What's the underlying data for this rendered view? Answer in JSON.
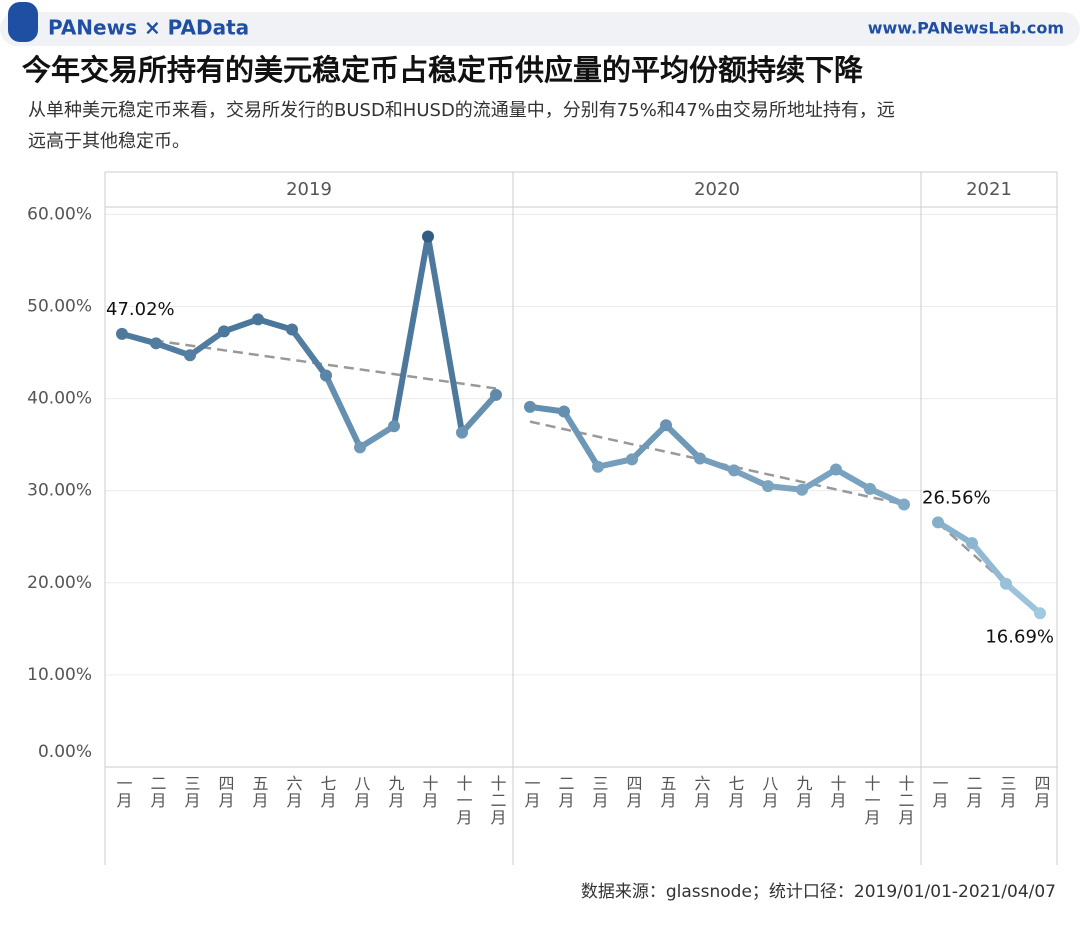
{
  "header": {
    "logo": "PANews × PAData",
    "url": "www.PANewsLab.com"
  },
  "chart_data": {
    "type": "line",
    "title": "今年交易所持有的美元稳定币占稳定币供应量的平均份额持续下降",
    "subtitle": [
      "从单种美元稳定币来看，交易所发行的BUSD和HUSD的流通量中，分别有75%和47%由交易所地址持有，远",
      "远高于其他稳定币。"
    ],
    "source": "数据来源：glassnode；统计口径：2019/01/01-2021/04/07",
    "ylim": [
      0,
      60.8
    ],
    "yticks": [
      {
        "value": 0,
        "label": "0.00%"
      },
      {
        "value": 10,
        "label": "10.00%"
      },
      {
        "value": 20,
        "label": "20.00%"
      },
      {
        "value": 30,
        "label": "30.00%"
      },
      {
        "value": 40,
        "label": "40.00%"
      },
      {
        "value": 50,
        "label": "50.00%"
      },
      {
        "value": 60,
        "label": "60.00%"
      }
    ],
    "grid": true,
    "color_range": [
      "#a6cde3",
      "#2a5781"
    ],
    "trend_color": "#999999",
    "panels": [
      {
        "name": "2019",
        "categories": [
          "一月",
          "二月",
          "三月",
          "四月",
          "五月",
          "六月",
          "七月",
          "八月",
          "九月",
          "十月",
          "十一月",
          "十二月"
        ],
        "values": [
          47.02,
          46.0,
          44.7,
          47.3,
          48.6,
          47.5,
          42.5,
          34.7,
          37.0,
          57.6,
          36.3,
          40.4
        ],
        "value_labels": [
          "47.02%",
          null,
          null,
          null,
          null,
          null,
          null,
          null,
          null,
          null,
          null,
          null
        ],
        "trend": [
          46.8,
          41.1
        ]
      },
      {
        "name": "2020",
        "categories": [
          "一月",
          "二月",
          "三月",
          "四月",
          "五月",
          "六月",
          "七月",
          "八月",
          "九月",
          "十月",
          "十一月",
          "十二月"
        ],
        "values": [
          39.1,
          38.6,
          32.6,
          33.4,
          37.1,
          33.5,
          32.2,
          30.5,
          30.1,
          32.3,
          30.2,
          28.5
        ],
        "value_labels": [
          null,
          null,
          null,
          null,
          null,
          null,
          null,
          null,
          null,
          null,
          null,
          null
        ],
        "trend": [
          37.5,
          28.5
        ]
      },
      {
        "name": "2021",
        "categories": [
          "一月",
          "二月",
          "三月",
          "四月"
        ],
        "values": [
          26.56,
          24.3,
          19.9,
          16.69
        ],
        "value_labels": [
          "26.56%",
          null,
          null,
          "16.69%"
        ],
        "trend": [
          26.5,
          16.6
        ]
      }
    ]
  }
}
